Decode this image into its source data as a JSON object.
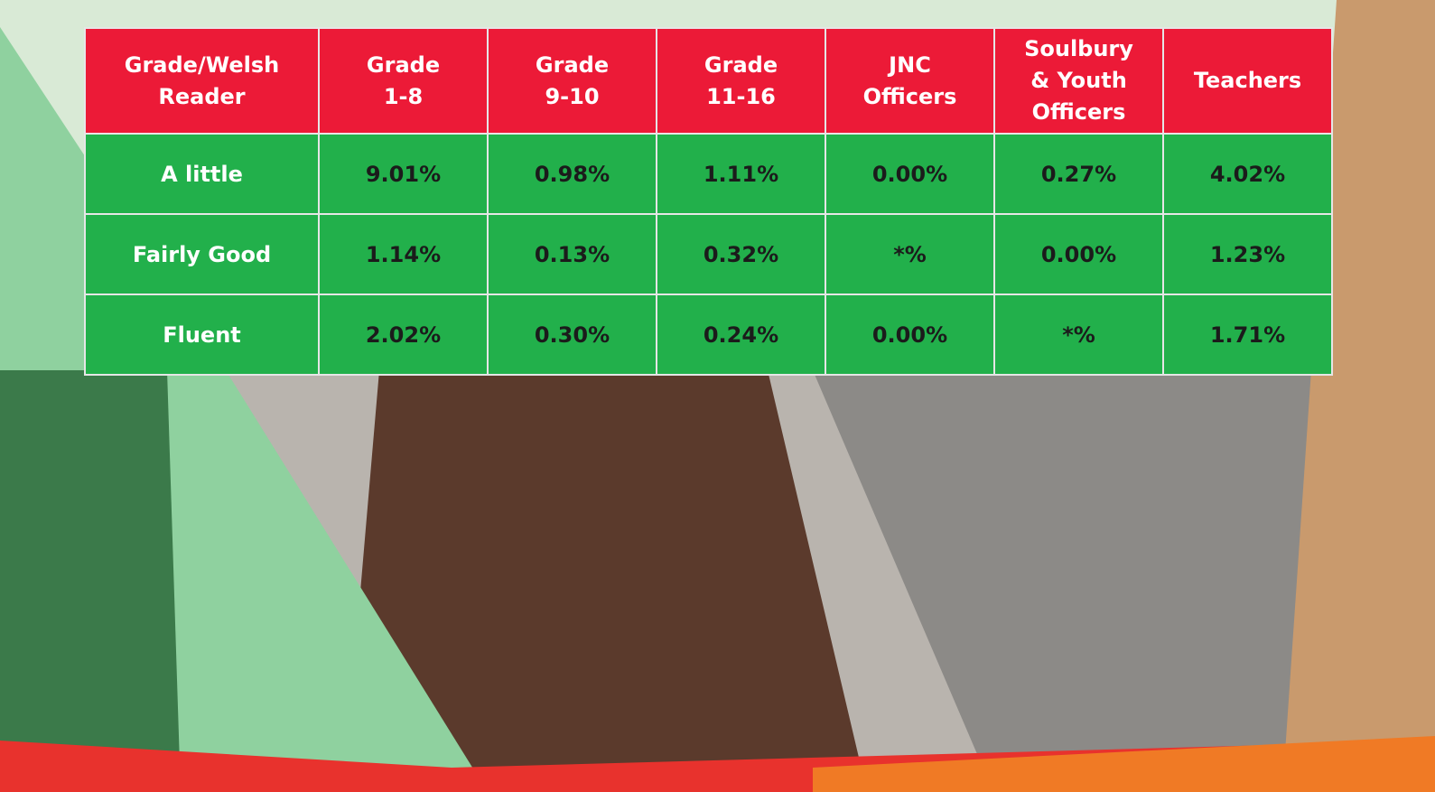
{
  "table": {
    "header": [
      [
        "Grade/Welsh",
        "Reader"
      ],
      [
        "Grade",
        "1-8"
      ],
      [
        "Grade",
        "9-10"
      ],
      [
        "Grade",
        "11-16"
      ],
      [
        "JNC",
        "Officers"
      ],
      [
        "Soulbury",
        "& Youth",
        "Officers"
      ],
      [
        "Teachers"
      ]
    ],
    "rows": [
      [
        "A little",
        "9.01%",
        "0.98%",
        "1.11%",
        "0.00%",
        "0.27%",
        "4.02%"
      ],
      [
        "Fairly Good",
        "1.14%",
        "0.13%",
        "0.32%",
        "*%",
        "0.00%",
        "1.23%"
      ],
      [
        "Fluent",
        "2.02%",
        "0.30%",
        "0.24%",
        "0.00%",
        "*%",
        "1.71%"
      ]
    ]
  }
}
